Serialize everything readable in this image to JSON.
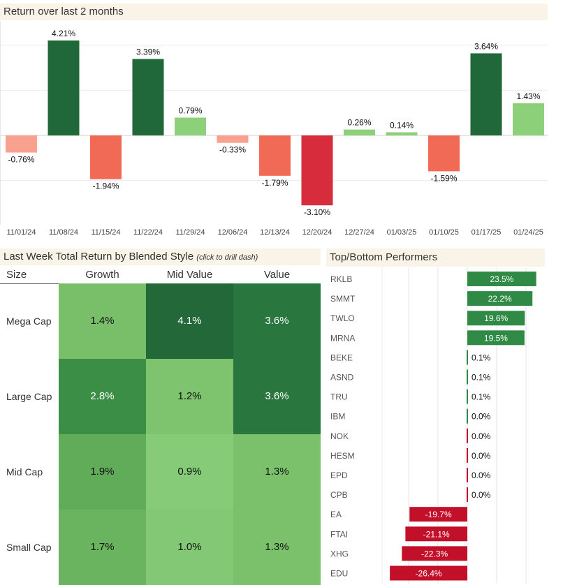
{
  "colors": {
    "pos_strong": "#20683a",
    "pos_mid": "#2f8a46",
    "pos_light": "#8cd07a",
    "neg_light": "#f9a08e",
    "neg_mid": "#f06a55",
    "neg_strong": "#d62c3b",
    "panel_bg": "#faf3e7"
  },
  "chart_data": [
    {
      "type": "bar",
      "title": "Return over last 2 months",
      "categories": [
        "11/01/24",
        "11/08/24",
        "11/15/24",
        "11/22/24",
        "11/29/24",
        "12/06/24",
        "12/13/24",
        "12/20/24",
        "12/27/24",
        "01/03/25",
        "01/10/25",
        "01/17/25",
        "01/24/25"
      ],
      "values": [
        -0.76,
        4.21,
        -1.94,
        3.39,
        0.79,
        -0.33,
        -1.79,
        -3.1,
        0.26,
        0.14,
        -1.59,
        3.64,
        1.43
      ],
      "labels": [
        "-0.76%",
        "4.21%",
        "-1.94%",
        "3.39%",
        "0.79%",
        "-0.33%",
        "-1.79%",
        "-3.10%",
        "0.26%",
        "0.14%",
        "-1.59%",
        "3.64%",
        "1.43%"
      ],
      "ylim": [
        -4.0,
        5.0
      ],
      "grid": true
    },
    {
      "type": "heatmap",
      "title": "Last Week Total Return by Blended Style",
      "note": "(click to drill dash)",
      "corner_label": "Size",
      "columns": [
        "Growth",
        "Mid Value",
        "Value"
      ],
      "rows": [
        "Mega Cap",
        "Large Cap",
        "Mid Cap",
        "Small Cap"
      ],
      "values": [
        [
          1.4,
          4.1,
          3.6
        ],
        [
          2.8,
          1.2,
          3.6
        ],
        [
          1.9,
          0.9,
          1.3
        ],
        [
          1.7,
          1.0,
          1.3
        ]
      ],
      "labels": [
        [
          "1.4%",
          "4.1%",
          "3.6%"
        ],
        [
          "2.8%",
          "1.2%",
          "3.6%"
        ],
        [
          "1.9%",
          "0.9%",
          "1.3%"
        ],
        [
          "1.7%",
          "1.0%",
          "1.3%"
        ]
      ]
    },
    {
      "type": "bar",
      "orientation": "horizontal",
      "title": "Top/Bottom Performers",
      "categories": [
        "RKLB",
        "SMMT",
        "TWLO",
        "MRNA",
        "BEKE",
        "ASND",
        "TRU",
        "IBM",
        "NOK",
        "HESM",
        "EPD",
        "CPB",
        "EA",
        "FTAI",
        "XHG",
        "EDU"
      ],
      "values": [
        23.5,
        22.2,
        19.6,
        19.5,
        0.1,
        0.1,
        0.1,
        0.0,
        -0.0,
        -0.0,
        0.0,
        0.0,
        -19.7,
        -21.1,
        -22.3,
        -26.4
      ],
      "labels": [
        "23.5%",
        "22.2%",
        "19.6%",
        "19.5%",
        "0.1%",
        "0.1%",
        "0.1%",
        "0.0%",
        "0.0%",
        "0.0%",
        "0.0%",
        "0.0%",
        "-19.7%",
        "-21.1%",
        "-22.3%",
        "-26.4%"
      ],
      "xlim": [
        -27,
        27
      ],
      "grid": true
    }
  ]
}
